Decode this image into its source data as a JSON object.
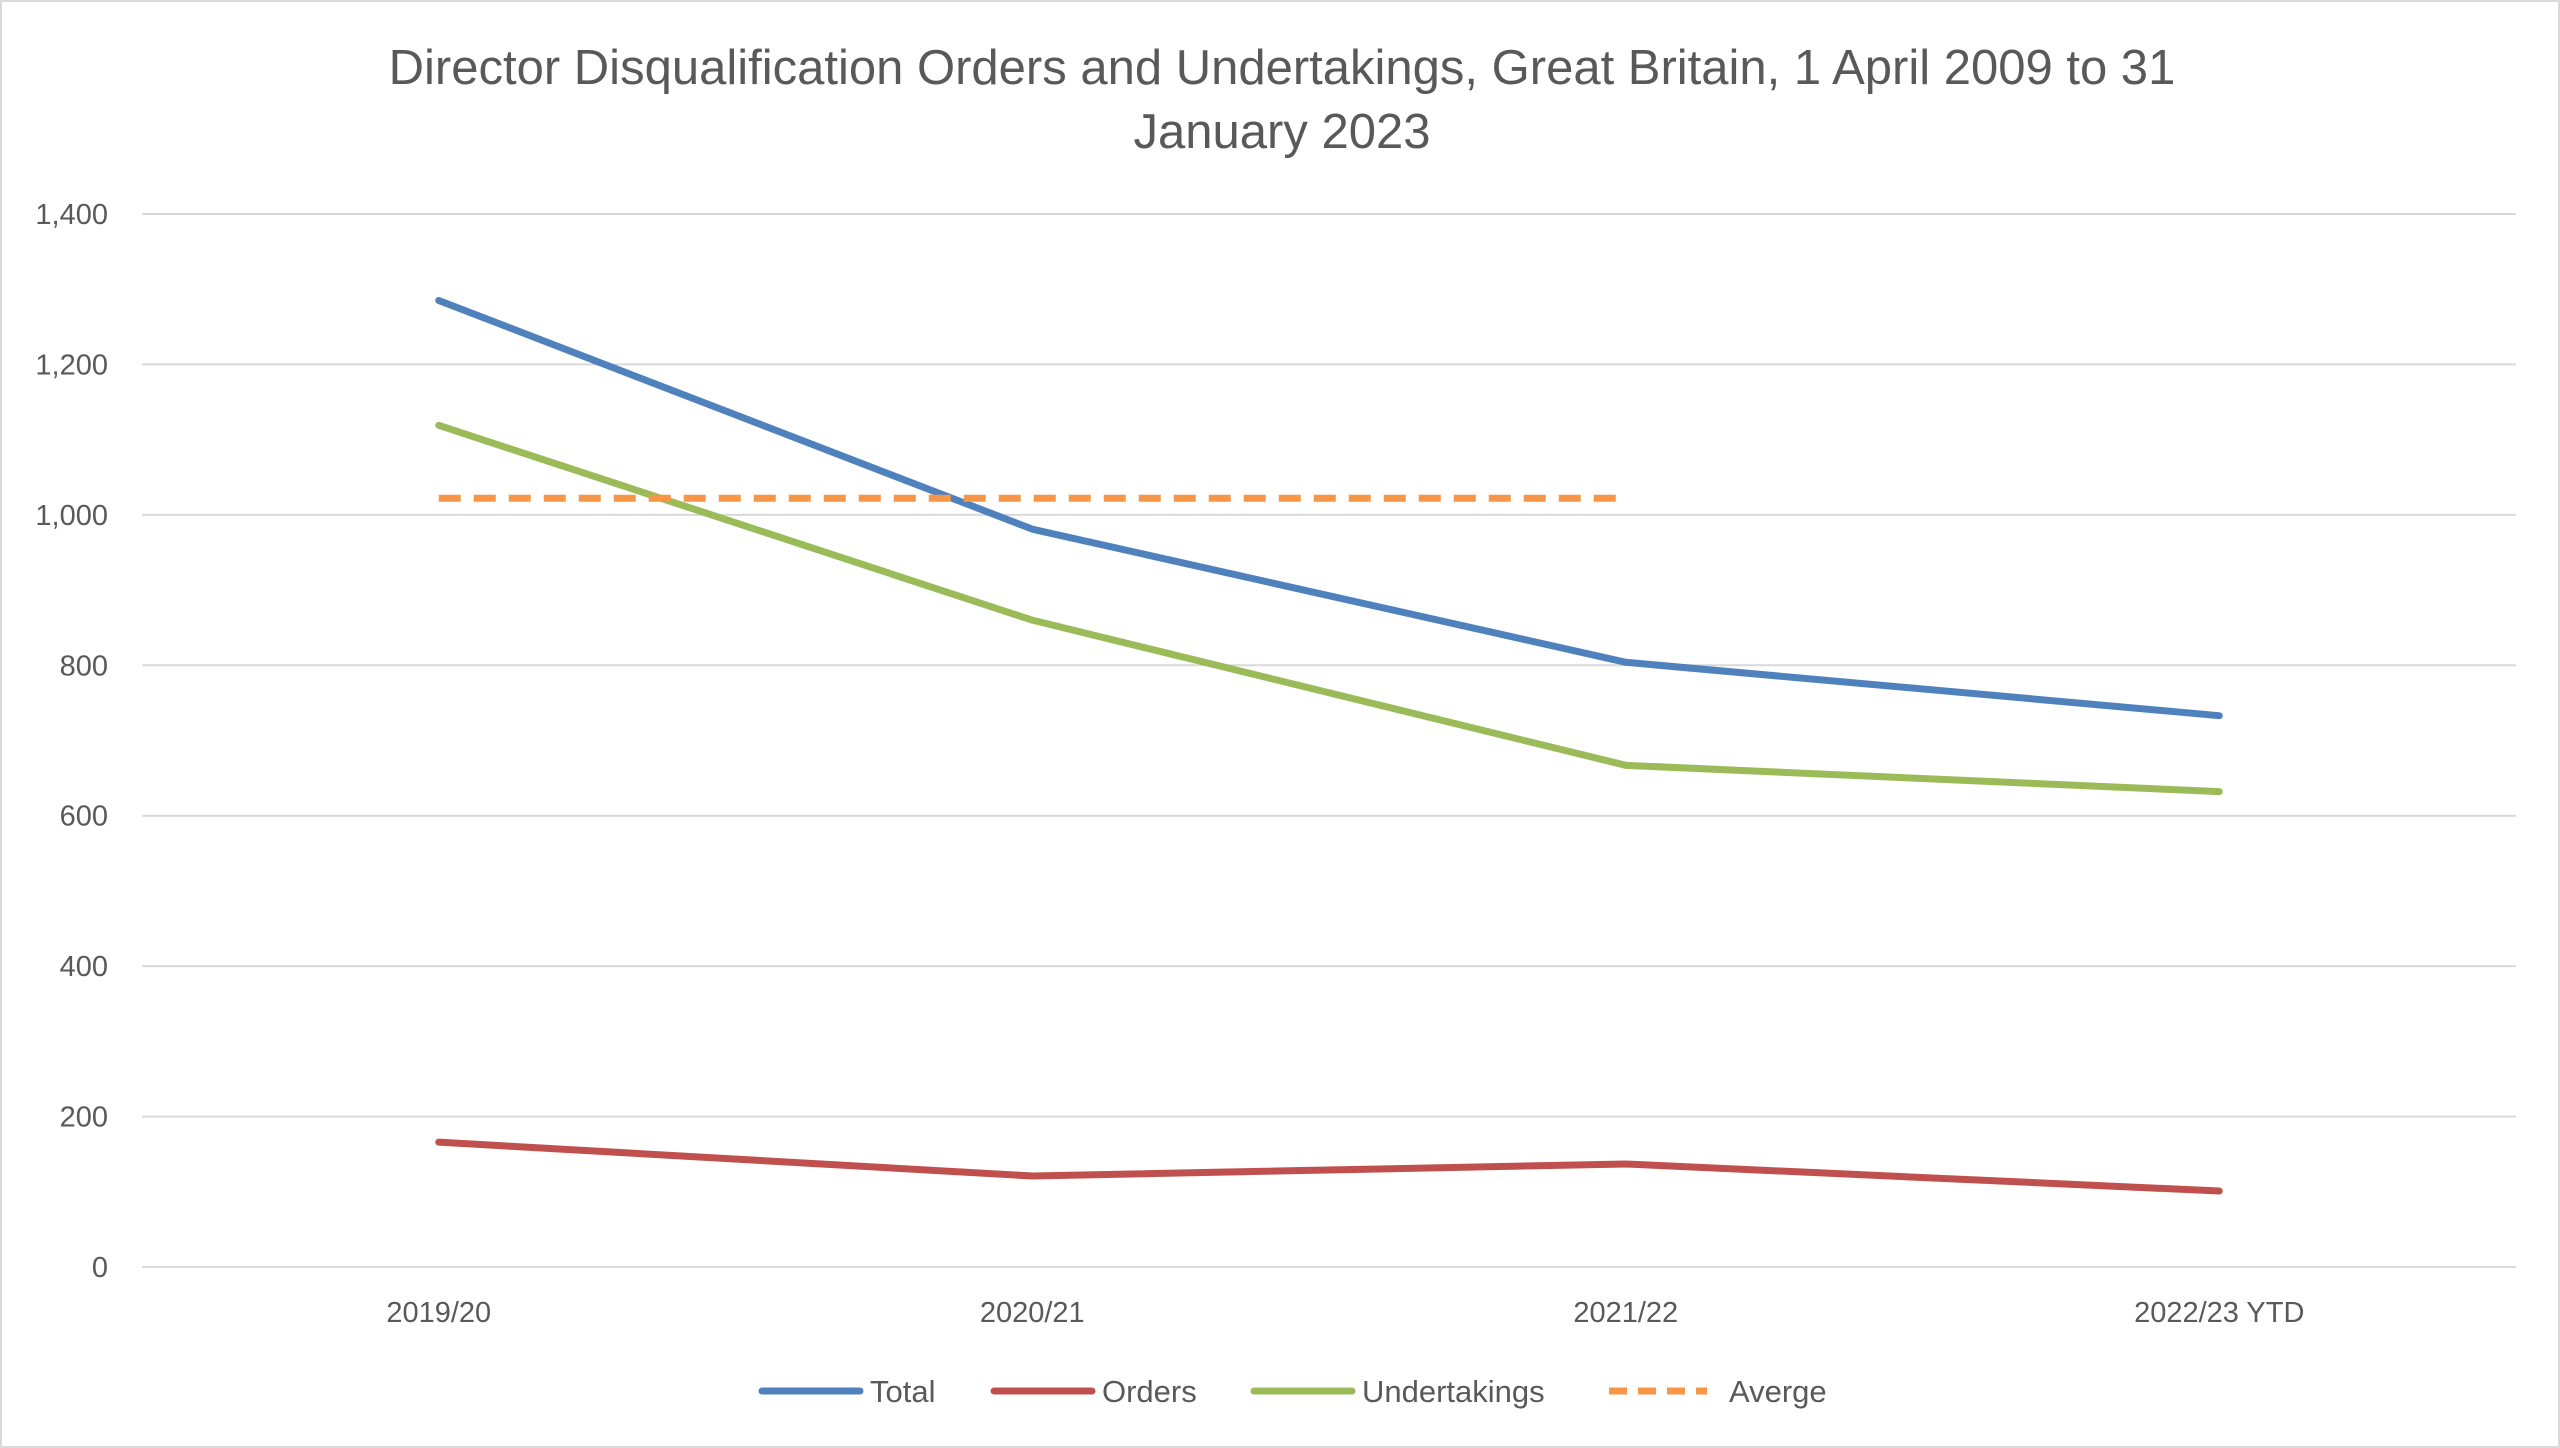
{
  "chart_data": {
    "type": "line",
    "title": "Director Disqualification Orders and Undertakings, Great Britain, 1 April 2009 to 31 January 2023",
    "xlabel": "",
    "ylabel": "",
    "categories": [
      "2019/20",
      "2020/21",
      "2021/22",
      "2022/23 YTD"
    ],
    "ylim": [
      0,
      1400
    ],
    "yticks": [
      0,
      200,
      400,
      600,
      800,
      1000,
      1200,
      1400
    ],
    "ytick_labels": [
      "0",
      "200",
      "400",
      "600",
      "800",
      "1,000",
      "1,200",
      "1,400"
    ],
    "grid": true,
    "legend_position": "bottom",
    "series": [
      {
        "name": "Total",
        "values": [
          1285,
          981,
          804,
          733
        ],
        "color": "#4f81bd",
        "dash": "solid"
      },
      {
        "name": "Orders",
        "values": [
          166,
          121,
          137,
          101
        ],
        "color": "#c0504d",
        "dash": "solid"
      },
      {
        "name": "Undertakings",
        "values": [
          1119,
          860,
          667,
          632
        ],
        "color": "#9bbb59",
        "dash": "solid"
      },
      {
        "name": "Averge",
        "values": [
          1022,
          1022,
          1022,
          null
        ],
        "color": "#f79646",
        "dash": "dashed"
      }
    ]
  }
}
